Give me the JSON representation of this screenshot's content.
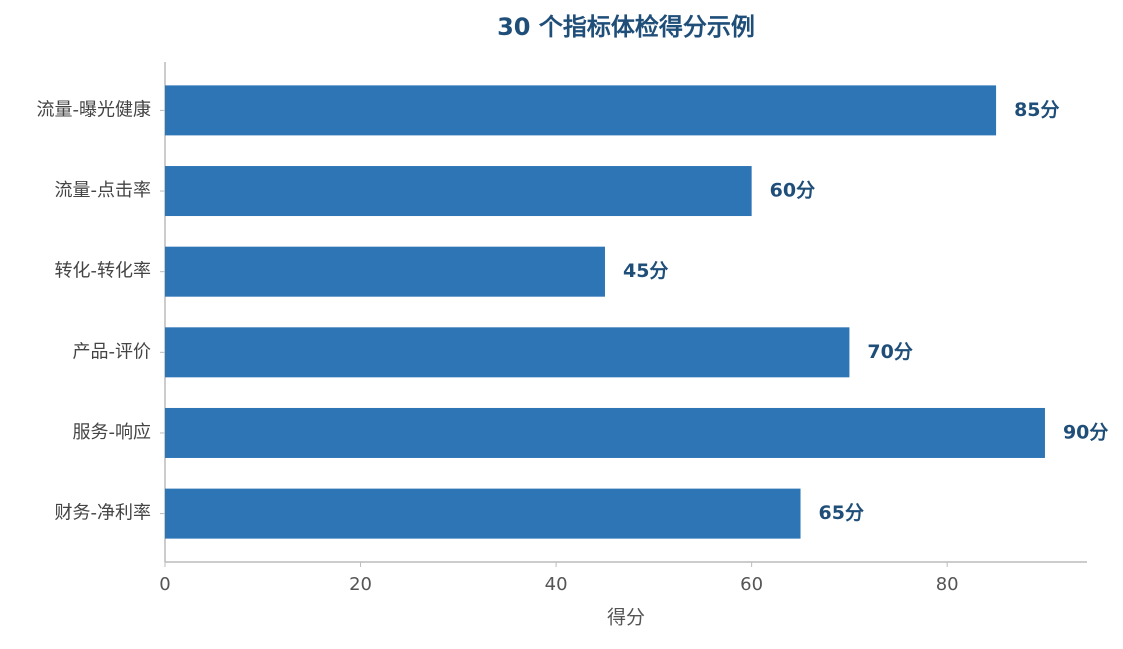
{
  "chart_data": {
    "type": "barh",
    "title": "30 个指标体检得分示例",
    "xlabel": "得分",
    "categories": [
      "流量-曝光健康",
      "流量-点击率",
      "转化-转化率",
      "产品-评价",
      "服务-响应",
      "财务-净利率"
    ],
    "values": [
      85,
      60,
      45,
      70,
      90,
      65
    ],
    "value_labels": [
      "85分",
      "60分",
      "45分",
      "70分",
      "90分",
      "65分"
    ],
    "color": "#2e75b6",
    "xlim": [
      0,
      94.3
    ],
    "xticks": [
      0,
      20,
      40,
      60,
      80
    ]
  }
}
